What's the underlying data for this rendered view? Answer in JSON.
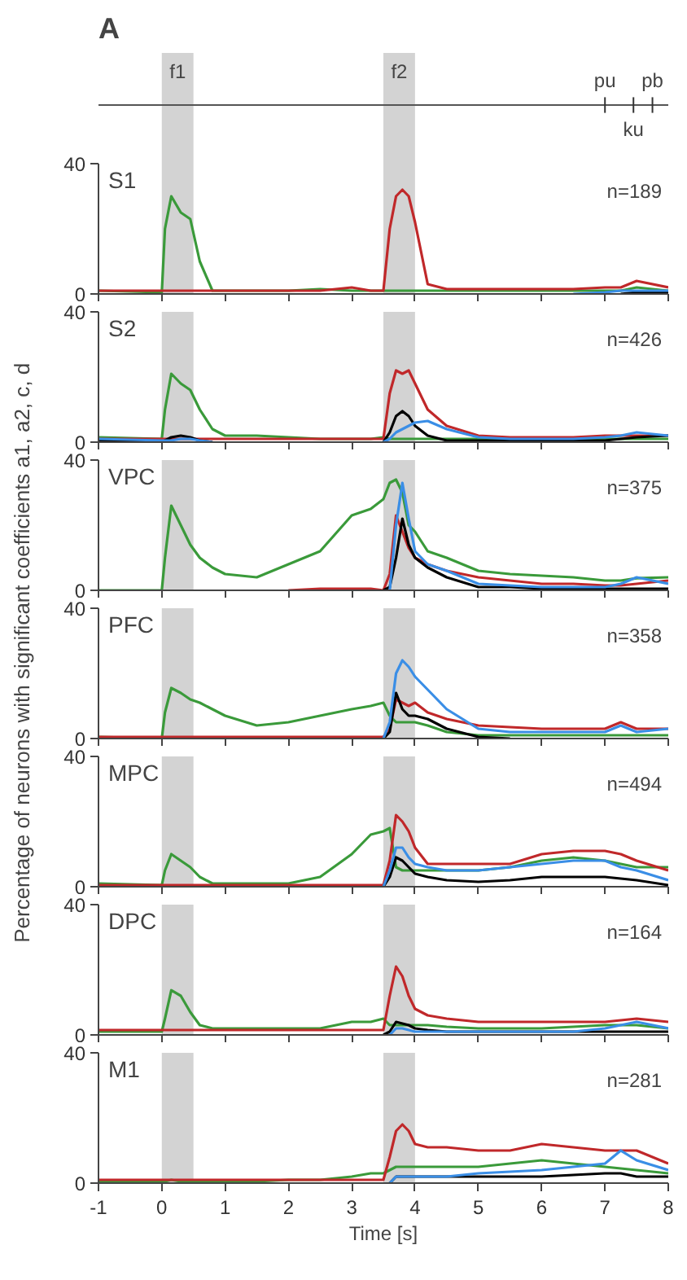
{
  "chart_data": [
    {
      "type": "line",
      "title": "A",
      "subtitle": "S1",
      "annotations": [
        "n=189"
      ],
      "ref_lines": [
        {
          "axis": "x",
          "value": 7,
          "label": "pu"
        },
        {
          "axis": "x",
          "value": 7.45,
          "label": "ku"
        },
        {
          "axis": "x",
          "value": 7.75,
          "label": "pb"
        }
      ],
      "xlim": [
        -1,
        8
      ],
      "xticks": [
        -1,
        0,
        1,
        2,
        3,
        4,
        5,
        6,
        7,
        8
      ],
      "ylim": [
        0,
        40
      ],
      "yticks": [
        0,
        40
      ],
      "tick_labels": "y",
      "grid": false,
      "bands": [
        {
          "axis": "x",
          "from": 0,
          "to": 0.5,
          "color": "#d3d3d3",
          "label": "f1"
        },
        {
          "axis": "x",
          "from": 3.5,
          "to": 4,
          "color": "#d3d3d3",
          "label": "f2"
        }
      ],
      "x": [
        -1,
        0,
        0.05,
        0.15,
        0.3,
        0.45,
        0.6,
        0.8,
        1,
        1.5,
        2,
        2.5,
        3,
        3.3,
        3.5,
        3.6,
        3.7,
        3.8,
        3.9,
        4,
        4.2,
        4.5,
        5,
        5.5,
        6,
        6.5,
        7,
        7.25,
        7.5,
        8
      ],
      "series": [
        {
          "color": "#3a9a3a",
          "values": [
            1,
            0.5,
            20,
            30,
            25,
            23,
            10,
            1,
            1,
            1,
            1,
            1.5,
            1,
            1,
            1,
            1,
            1,
            1,
            1,
            1,
            1,
            1,
            1,
            1,
            1,
            1,
            1,
            1,
            2,
            1
          ]
        },
        {
          "color": "#c0282a",
          "values": [
            1,
            1,
            1,
            1,
            1,
            1,
            1,
            1,
            1,
            1,
            1,
            1,
            2,
            1,
            1,
            20,
            30,
            32,
            30,
            22,
            3,
            1.5,
            1.5,
            1.5,
            1.5,
            1.5,
            2,
            2,
            4,
            2
          ]
        },
        {
          "color": "#000000",
          "values": [
            null,
            null,
            null,
            null,
            null,
            null,
            null,
            null,
            null,
            null,
            null,
            null,
            null,
            null,
            null,
            null,
            null,
            null,
            null,
            null,
            null,
            null,
            null,
            null,
            null,
            null,
            null,
            0,
            0.5,
            0.5
          ]
        },
        {
          "color": "#3a8ee6",
          "values": [
            null,
            null,
            null,
            null,
            null,
            null,
            null,
            null,
            null,
            null,
            null,
            null,
            null,
            null,
            null,
            null,
            null,
            null,
            null,
            null,
            null,
            null,
            null,
            null,
            null,
            0,
            0.5,
            1,
            1,
            1
          ]
        }
      ]
    },
    {
      "type": "line",
      "title": "S2",
      "annotations": [
        "n=426"
      ],
      "xlim": [
        -1,
        8
      ],
      "xticks": [
        -1,
        0,
        1,
        2,
        3,
        4,
        5,
        6,
        7,
        8
      ],
      "ylim": [
        0,
        40
      ],
      "yticks": [
        0,
        40
      ],
      "tick_labels": "y",
      "grid": false,
      "bands": [
        {
          "axis": "x",
          "from": 0,
          "to": 0.5,
          "color": "#d3d3d3"
        },
        {
          "axis": "x",
          "from": 3.5,
          "to": 4,
          "color": "#d3d3d3"
        }
      ],
      "x": [
        -1,
        0,
        0.05,
        0.15,
        0.3,
        0.45,
        0.6,
        0.8,
        1,
        1.5,
        2,
        2.5,
        3,
        3.3,
        3.5,
        3.6,
        3.7,
        3.8,
        3.9,
        4,
        4.2,
        4.5,
        5,
        5.5,
        6,
        6.5,
        7,
        7.25,
        7.5,
        8
      ],
      "series": [
        {
          "color": "#3a9a3a",
          "values": [
            1.5,
            1,
            10,
            21,
            18,
            16,
            10,
            4,
            2,
            2,
            1.5,
            1,
            1,
            1,
            1.5,
            1,
            1,
            1,
            1,
            1,
            1,
            1,
            1,
            1,
            1,
            1,
            1,
            1,
            1,
            1
          ]
        },
        {
          "color": "#c0282a",
          "values": [
            1,
            1,
            1,
            1,
            1,
            1,
            1,
            1,
            1,
            1,
            1,
            1,
            1,
            1,
            1,
            15,
            22,
            21,
            22,
            18,
            10,
            5,
            2,
            1.5,
            1.5,
            1.5,
            2,
            2,
            2,
            2
          ]
        },
        {
          "color": "#000000",
          "values": [
            0.5,
            0,
            0.5,
            1.5,
            2,
            1.5,
            0.5,
            0,
            null,
            null,
            null,
            null,
            null,
            null,
            0,
            3,
            8,
            9.5,
            8,
            5,
            2,
            0.5,
            0.5,
            0.5,
            0.5,
            0.5,
            0.5,
            1,
            1.5,
            2
          ]
        },
        {
          "color": "#3a8ee6",
          "values": [
            1,
            0.5,
            0.5,
            0.5,
            1,
            1,
            0.5,
            0,
            null,
            null,
            null,
            null,
            null,
            null,
            0,
            1,
            3,
            4,
            5,
            6,
            6.5,
            4,
            1.5,
            1,
            1,
            1,
            1.5,
            2,
            3,
            2
          ]
        }
      ]
    },
    {
      "type": "line",
      "title": "VPC",
      "annotations": [
        "n=375"
      ],
      "xlim": [
        -1,
        8
      ],
      "xticks": [
        -1,
        0,
        1,
        2,
        3,
        4,
        5,
        6,
        7,
        8
      ],
      "ylim": [
        0,
        40
      ],
      "yticks": [
        0,
        40
      ],
      "tick_labels": "y",
      "grid": false,
      "bands": [
        {
          "axis": "x",
          "from": 0,
          "to": 0.5,
          "color": "#d3d3d3"
        },
        {
          "axis": "x",
          "from": 3.5,
          "to": 4,
          "color": "#d3d3d3"
        }
      ],
      "x": [
        -1,
        0,
        0.05,
        0.15,
        0.3,
        0.45,
        0.6,
        0.8,
        1,
        1.5,
        2,
        2.5,
        3,
        3.3,
        3.5,
        3.6,
        3.7,
        3.8,
        3.9,
        4,
        4.2,
        4.5,
        5,
        5.5,
        6,
        6.5,
        7,
        7.25,
        7.5,
        8
      ],
      "series": [
        {
          "color": "#3a9a3a",
          "values": [
            0,
            0,
            10,
            26,
            20,
            14,
            10,
            7,
            5,
            4,
            8,
            12,
            23,
            25,
            28,
            33,
            34,
            30,
            20,
            18,
            12,
            10,
            6,
            5,
            4.5,
            4,
            3,
            3,
            3.7,
            4
          ]
        },
        {
          "color": "#c0282a",
          "values": [
            null,
            null,
            null,
            null,
            null,
            null,
            null,
            null,
            null,
            null,
            0,
            0.5,
            0.5,
            0.5,
            0,
            5,
            23,
            18,
            13,
            10,
            8,
            6,
            4,
            3,
            2,
            2,
            1.5,
            1.5,
            2,
            3
          ]
        },
        {
          "color": "#000000",
          "values": [
            null,
            null,
            null,
            null,
            null,
            null,
            null,
            null,
            null,
            null,
            null,
            null,
            null,
            null,
            0,
            1,
            10,
            22,
            14,
            10,
            7,
            4,
            1,
            1,
            0.5,
            0.5,
            0.5,
            0.5,
            0.5,
            0.5
          ]
        },
        {
          "color": "#3a8ee6",
          "values": [
            null,
            null,
            null,
            null,
            null,
            null,
            null,
            null,
            null,
            null,
            null,
            null,
            null,
            null,
            null,
            0,
            20,
            33,
            22,
            12,
            8,
            6,
            2,
            1.5,
            1,
            1,
            1,
            2,
            4,
            2
          ]
        }
      ]
    },
    {
      "type": "line",
      "title": "PFC",
      "ylabel": "Percentage of neurons with significant coefficients a1, a2, c, d",
      "annotations": [
        "n=358"
      ],
      "xlim": [
        -1,
        8
      ],
      "xticks": [
        -1,
        0,
        1,
        2,
        3,
        4,
        5,
        6,
        7,
        8
      ],
      "ylim": [
        0,
        40
      ],
      "yticks": [
        0,
        40
      ],
      "tick_labels": "y",
      "grid": false,
      "bands": [
        {
          "axis": "x",
          "from": 0,
          "to": 0.5,
          "color": "#d3d3d3"
        },
        {
          "axis": "x",
          "from": 3.5,
          "to": 4,
          "color": "#d3d3d3"
        }
      ],
      "x": [
        -1,
        0,
        0.05,
        0.15,
        0.3,
        0.45,
        0.6,
        0.8,
        1,
        1.5,
        2,
        2.5,
        3,
        3.3,
        3.5,
        3.6,
        3.7,
        3.8,
        3.9,
        4,
        4.2,
        4.5,
        5,
        5.5,
        6,
        6.5,
        7,
        7.25,
        7.5,
        8
      ],
      "series": [
        {
          "color": "#3a9a3a",
          "values": [
            0.5,
            0,
            8,
            15.5,
            14,
            12,
            11,
            9,
            7,
            4,
            5,
            7,
            9,
            10,
            11,
            7,
            5,
            5,
            5,
            5,
            4,
            2,
            1,
            1,
            1,
            1,
            1,
            1,
            1,
            1
          ]
        },
        {
          "color": "#c0282a",
          "values": [
            0.5,
            0.5,
            0.5,
            0.5,
            0.5,
            0.5,
            0.5,
            0.5,
            0.5,
            0.5,
            0.5,
            0.5,
            0.5,
            0.5,
            0.5,
            3,
            12,
            11,
            10,
            11,
            8,
            6,
            4,
            3.5,
            3,
            3,
            3,
            5,
            3,
            3
          ]
        },
        {
          "color": "#000000",
          "values": [
            null,
            null,
            null,
            null,
            null,
            null,
            null,
            null,
            null,
            null,
            null,
            null,
            null,
            null,
            0,
            2,
            14,
            9,
            7,
            7,
            6,
            3,
            0.5,
            0,
            null,
            null,
            null,
            null,
            null,
            null
          ]
        },
        {
          "color": "#3a8ee6",
          "values": [
            null,
            null,
            null,
            null,
            null,
            null,
            null,
            null,
            null,
            null,
            null,
            null,
            null,
            null,
            0,
            5,
            20,
            24,
            22,
            19,
            15,
            9,
            3,
            2,
            2,
            2,
            2,
            4,
            2,
            3
          ]
        }
      ]
    },
    {
      "type": "line",
      "title": "MPC",
      "annotations": [
        "n=494"
      ],
      "xlim": [
        -1,
        8
      ],
      "xticks": [
        -1,
        0,
        1,
        2,
        3,
        4,
        5,
        6,
        7,
        8
      ],
      "ylim": [
        0,
        40
      ],
      "yticks": [
        0,
        40
      ],
      "tick_labels": "y",
      "grid": false,
      "bands": [
        {
          "axis": "x",
          "from": 0,
          "to": 0.5,
          "color": "#d3d3d3"
        },
        {
          "axis": "x",
          "from": 3.5,
          "to": 4,
          "color": "#d3d3d3"
        }
      ],
      "x": [
        -1,
        0,
        0.05,
        0.15,
        0.3,
        0.45,
        0.6,
        0.8,
        1,
        1.5,
        2,
        2.5,
        3,
        3.3,
        3.5,
        3.6,
        3.7,
        3.8,
        3.9,
        4,
        4.2,
        4.5,
        5,
        5.5,
        6,
        6.5,
        7,
        7.25,
        7.5,
        8
      ],
      "series": [
        {
          "color": "#3a9a3a",
          "values": [
            1,
            0.5,
            5,
            10,
            8,
            6,
            3,
            1,
            1,
            1,
            1,
            3,
            10,
            16,
            17,
            18,
            6,
            5,
            5,
            5,
            5,
            5,
            5,
            6,
            8,
            9,
            8,
            7,
            6,
            6
          ]
        },
        {
          "color": "#c0282a",
          "values": [
            0.5,
            0.5,
            0.5,
            0.5,
            0.5,
            0.5,
            0.5,
            0.5,
            0.5,
            0.5,
            0.5,
            0.5,
            0.5,
            0.5,
            0.5,
            8,
            22,
            20,
            17,
            12,
            7,
            7,
            7,
            7,
            10,
            11,
            11,
            10,
            8,
            5
          ]
        },
        {
          "color": "#000000",
          "values": [
            null,
            null,
            null,
            null,
            null,
            null,
            null,
            null,
            null,
            null,
            null,
            null,
            null,
            null,
            0,
            3,
            9,
            8,
            6,
            4,
            3,
            2,
            1.5,
            2,
            3,
            3,
            3,
            2.5,
            2,
            0.5
          ]
        },
        {
          "color": "#3a8ee6",
          "values": [
            null,
            null,
            null,
            null,
            null,
            null,
            null,
            null,
            null,
            null,
            null,
            null,
            null,
            null,
            0,
            5,
            12,
            12,
            9,
            7,
            6,
            5,
            5,
            6,
            7,
            8,
            8,
            6,
            5,
            2
          ]
        }
      ]
    },
    {
      "type": "line",
      "title": "DPC",
      "annotations": [
        "n=164"
      ],
      "xlim": [
        -1,
        8
      ],
      "xticks": [
        -1,
        0,
        1,
        2,
        3,
        4,
        5,
        6,
        7,
        8
      ],
      "ylim": [
        0,
        40
      ],
      "yticks": [
        0,
        40
      ],
      "tick_labels": "y",
      "grid": false,
      "bands": [
        {
          "axis": "x",
          "from": 0,
          "to": 0.5,
          "color": "#d3d3d3"
        },
        {
          "axis": "x",
          "from": 3.5,
          "to": 4,
          "color": "#d3d3d3"
        }
      ],
      "x": [
        -1,
        0,
        0.05,
        0.15,
        0.3,
        0.45,
        0.6,
        0.8,
        1,
        1.5,
        2,
        2.5,
        3,
        3.3,
        3.5,
        3.6,
        3.7,
        3.8,
        3.9,
        4,
        4.2,
        4.5,
        5,
        5.5,
        6,
        6.5,
        7,
        7.25,
        7.5,
        8
      ],
      "series": [
        {
          "color": "#3a9a3a",
          "values": [
            1,
            1,
            5,
            13.7,
            12,
            7,
            3,
            2,
            2,
            2,
            2,
            2,
            4,
            4,
            5,
            3,
            3,
            3,
            3,
            3,
            3,
            2.5,
            2,
            2,
            2,
            2.5,
            3,
            3,
            3,
            2
          ]
        },
        {
          "color": "#c0282a",
          "values": [
            1.5,
            1.5,
            1.5,
            1.5,
            1.5,
            1.5,
            1.5,
            1.5,
            1.5,
            1.5,
            1.5,
            1.5,
            1.5,
            1.5,
            1.5,
            12,
            21,
            18,
            12,
            8,
            6,
            5,
            4,
            4,
            4,
            4,
            4,
            4.5,
            5,
            4
          ]
        },
        {
          "color": "#000000",
          "values": [
            null,
            null,
            null,
            null,
            null,
            null,
            null,
            null,
            null,
            null,
            null,
            null,
            null,
            null,
            0,
            1,
            4,
            3.5,
            3,
            2,
            1.5,
            1,
            1,
            1,
            1,
            1,
            1,
            1,
            1,
            1
          ]
        },
        {
          "color": "#3a8ee6",
          "values": [
            null,
            null,
            null,
            null,
            null,
            null,
            null,
            null,
            null,
            null,
            null,
            null,
            null,
            null,
            null,
            0,
            2,
            2,
            1.5,
            1,
            1,
            1,
            1,
            1,
            1,
            1,
            2,
            3,
            4,
            2
          ]
        }
      ]
    },
    {
      "type": "line",
      "title": "M1",
      "xlabel": "Time [s]",
      "annotations": [
        "n=281"
      ],
      "xlim": [
        -1,
        8
      ],
      "xticks": [
        -1,
        0,
        1,
        2,
        3,
        4,
        5,
        6,
        7,
        8
      ],
      "ylim": [
        0,
        40
      ],
      "yticks": [
        0,
        40
      ],
      "grid": false,
      "bands": [
        {
          "axis": "x",
          "from": 0,
          "to": 0.5,
          "color": "#d3d3d3"
        },
        {
          "axis": "x",
          "from": 3.5,
          "to": 4,
          "color": "#d3d3d3"
        }
      ],
      "x": [
        -1,
        0,
        0.05,
        0.15,
        0.3,
        0.45,
        0.6,
        0.8,
        1,
        1.5,
        2,
        2.5,
        3,
        3.3,
        3.5,
        3.6,
        3.7,
        3.8,
        3.9,
        4,
        4.2,
        4.5,
        5,
        5.5,
        6,
        6.5,
        7,
        7.25,
        7.5,
        8
      ],
      "series": [
        {
          "color": "#3a9a3a",
          "values": [
            0.5,
            0.5,
            0.5,
            1,
            0.5,
            0.5,
            0.5,
            0.5,
            0.5,
            0.5,
            1,
            1,
            2,
            3,
            3,
            4,
            5,
            5,
            5,
            5,
            5,
            5,
            5,
            6,
            7,
            6,
            5,
            4.5,
            4,
            3
          ]
        },
        {
          "color": "#c0282a",
          "values": [
            1,
            1,
            1,
            1,
            1,
            1,
            1,
            1,
            1,
            1,
            1,
            1,
            1,
            1,
            1,
            8,
            16,
            18,
            16,
            12,
            11,
            11,
            10,
            10,
            12,
            11,
            10,
            10,
            10,
            6
          ]
        },
        {
          "color": "#000000",
          "values": [
            null,
            null,
            null,
            null,
            null,
            null,
            null,
            null,
            null,
            null,
            null,
            null,
            null,
            null,
            null,
            0,
            2,
            2,
            2,
            2,
            2,
            2,
            2,
            2,
            2,
            2.5,
            3,
            3,
            2,
            2
          ]
        },
        {
          "color": "#3a8ee6",
          "values": [
            null,
            null,
            null,
            null,
            null,
            null,
            null,
            null,
            null,
            null,
            null,
            null,
            null,
            null,
            null,
            0,
            2,
            2,
            2,
            2,
            2,
            2,
            3,
            3.5,
            4,
            5,
            6,
            10,
            7,
            4
          ]
        }
      ]
    }
  ]
}
